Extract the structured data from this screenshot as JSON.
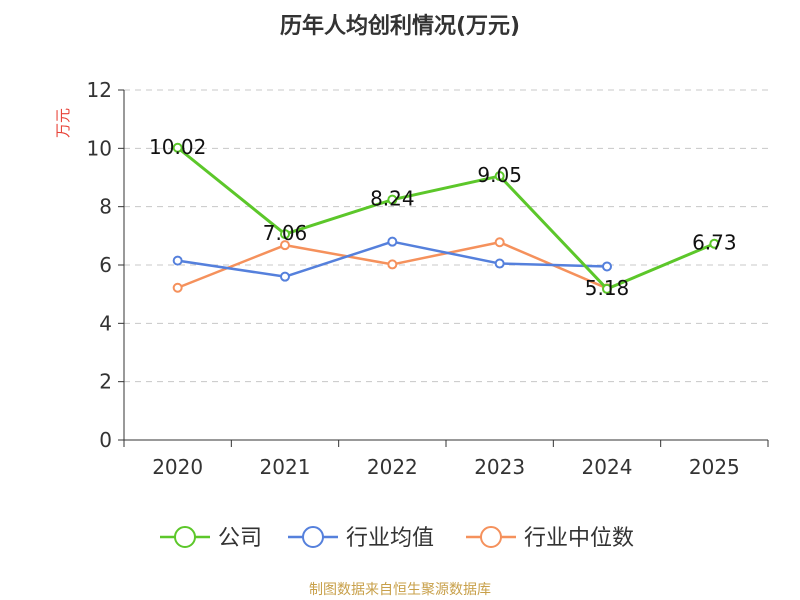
{
  "chart_data": {
    "type": "line",
    "title": "历年人均创利情况(万元)",
    "ylabel": "万元",
    "xlabel": "",
    "ylim": [
      0,
      12
    ],
    "yticks": [
      0,
      2,
      4,
      6,
      8,
      10,
      12
    ],
    "grid": true,
    "legend_position": "bottom",
    "categories": [
      "2020",
      "2021",
      "2022",
      "2023",
      "2024",
      "2025"
    ],
    "series": [
      {
        "name": "公司",
        "color": "#5cc72a",
        "values": [
          10.02,
          7.06,
          8.24,
          9.05,
          5.18,
          6.73
        ],
        "labels": [
          "10.02",
          "7.06",
          "8.24",
          "9.05",
          "5.18",
          "6.73"
        ]
      },
      {
        "name": "行业均值",
        "color": "#5580dc",
        "values": [
          6.15,
          5.6,
          6.8,
          6.05,
          5.95,
          null
        ]
      },
      {
        "name": "行业中位数",
        "color": "#f5915c",
        "values": [
          5.22,
          6.68,
          6.02,
          6.78,
          5.2,
          null
        ]
      }
    ]
  },
  "source": "制图数据来自恒生聚源数据库"
}
